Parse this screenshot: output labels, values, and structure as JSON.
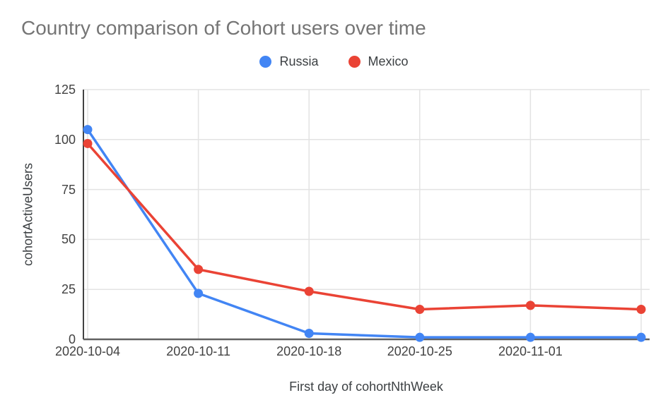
{
  "title": "Country comparison of Cohort users over time",
  "legend": {
    "items": [
      {
        "label": "Russia",
        "color": "#4285f4"
      },
      {
        "label": "Mexico",
        "color": "#ea4335"
      }
    ]
  },
  "chart_data": {
    "type": "line",
    "title": "Country comparison of Cohort users over time",
    "categories": [
      "2020-10-04",
      "2020-10-11",
      "2020-10-18",
      "2020-10-25",
      "2020-11-01",
      ""
    ],
    "series": [
      {
        "name": "Russia",
        "color": "#4285f4",
        "values": [
          105,
          23,
          3,
          1,
          1,
          1
        ]
      },
      {
        "name": "Mexico",
        "color": "#ea4335",
        "values": [
          98,
          35,
          24,
          15,
          17,
          15
        ]
      }
    ],
    "xlabel": "First day of cohortNthWeek",
    "ylabel": "cohortActiveUsers",
    "y_ticks": [
      0,
      25,
      50,
      75,
      100,
      125
    ],
    "ylim": [
      0,
      125
    ],
    "grid": true,
    "legend_position": "top"
  },
  "colors": {
    "title": "#757575",
    "axis_text": "#424242",
    "legend_text": "#3c4043",
    "gridline": "#e3e3e3",
    "y_axis_line": "#424242",
    "x_axis_line": "#616161",
    "background": "#ffffff"
  }
}
